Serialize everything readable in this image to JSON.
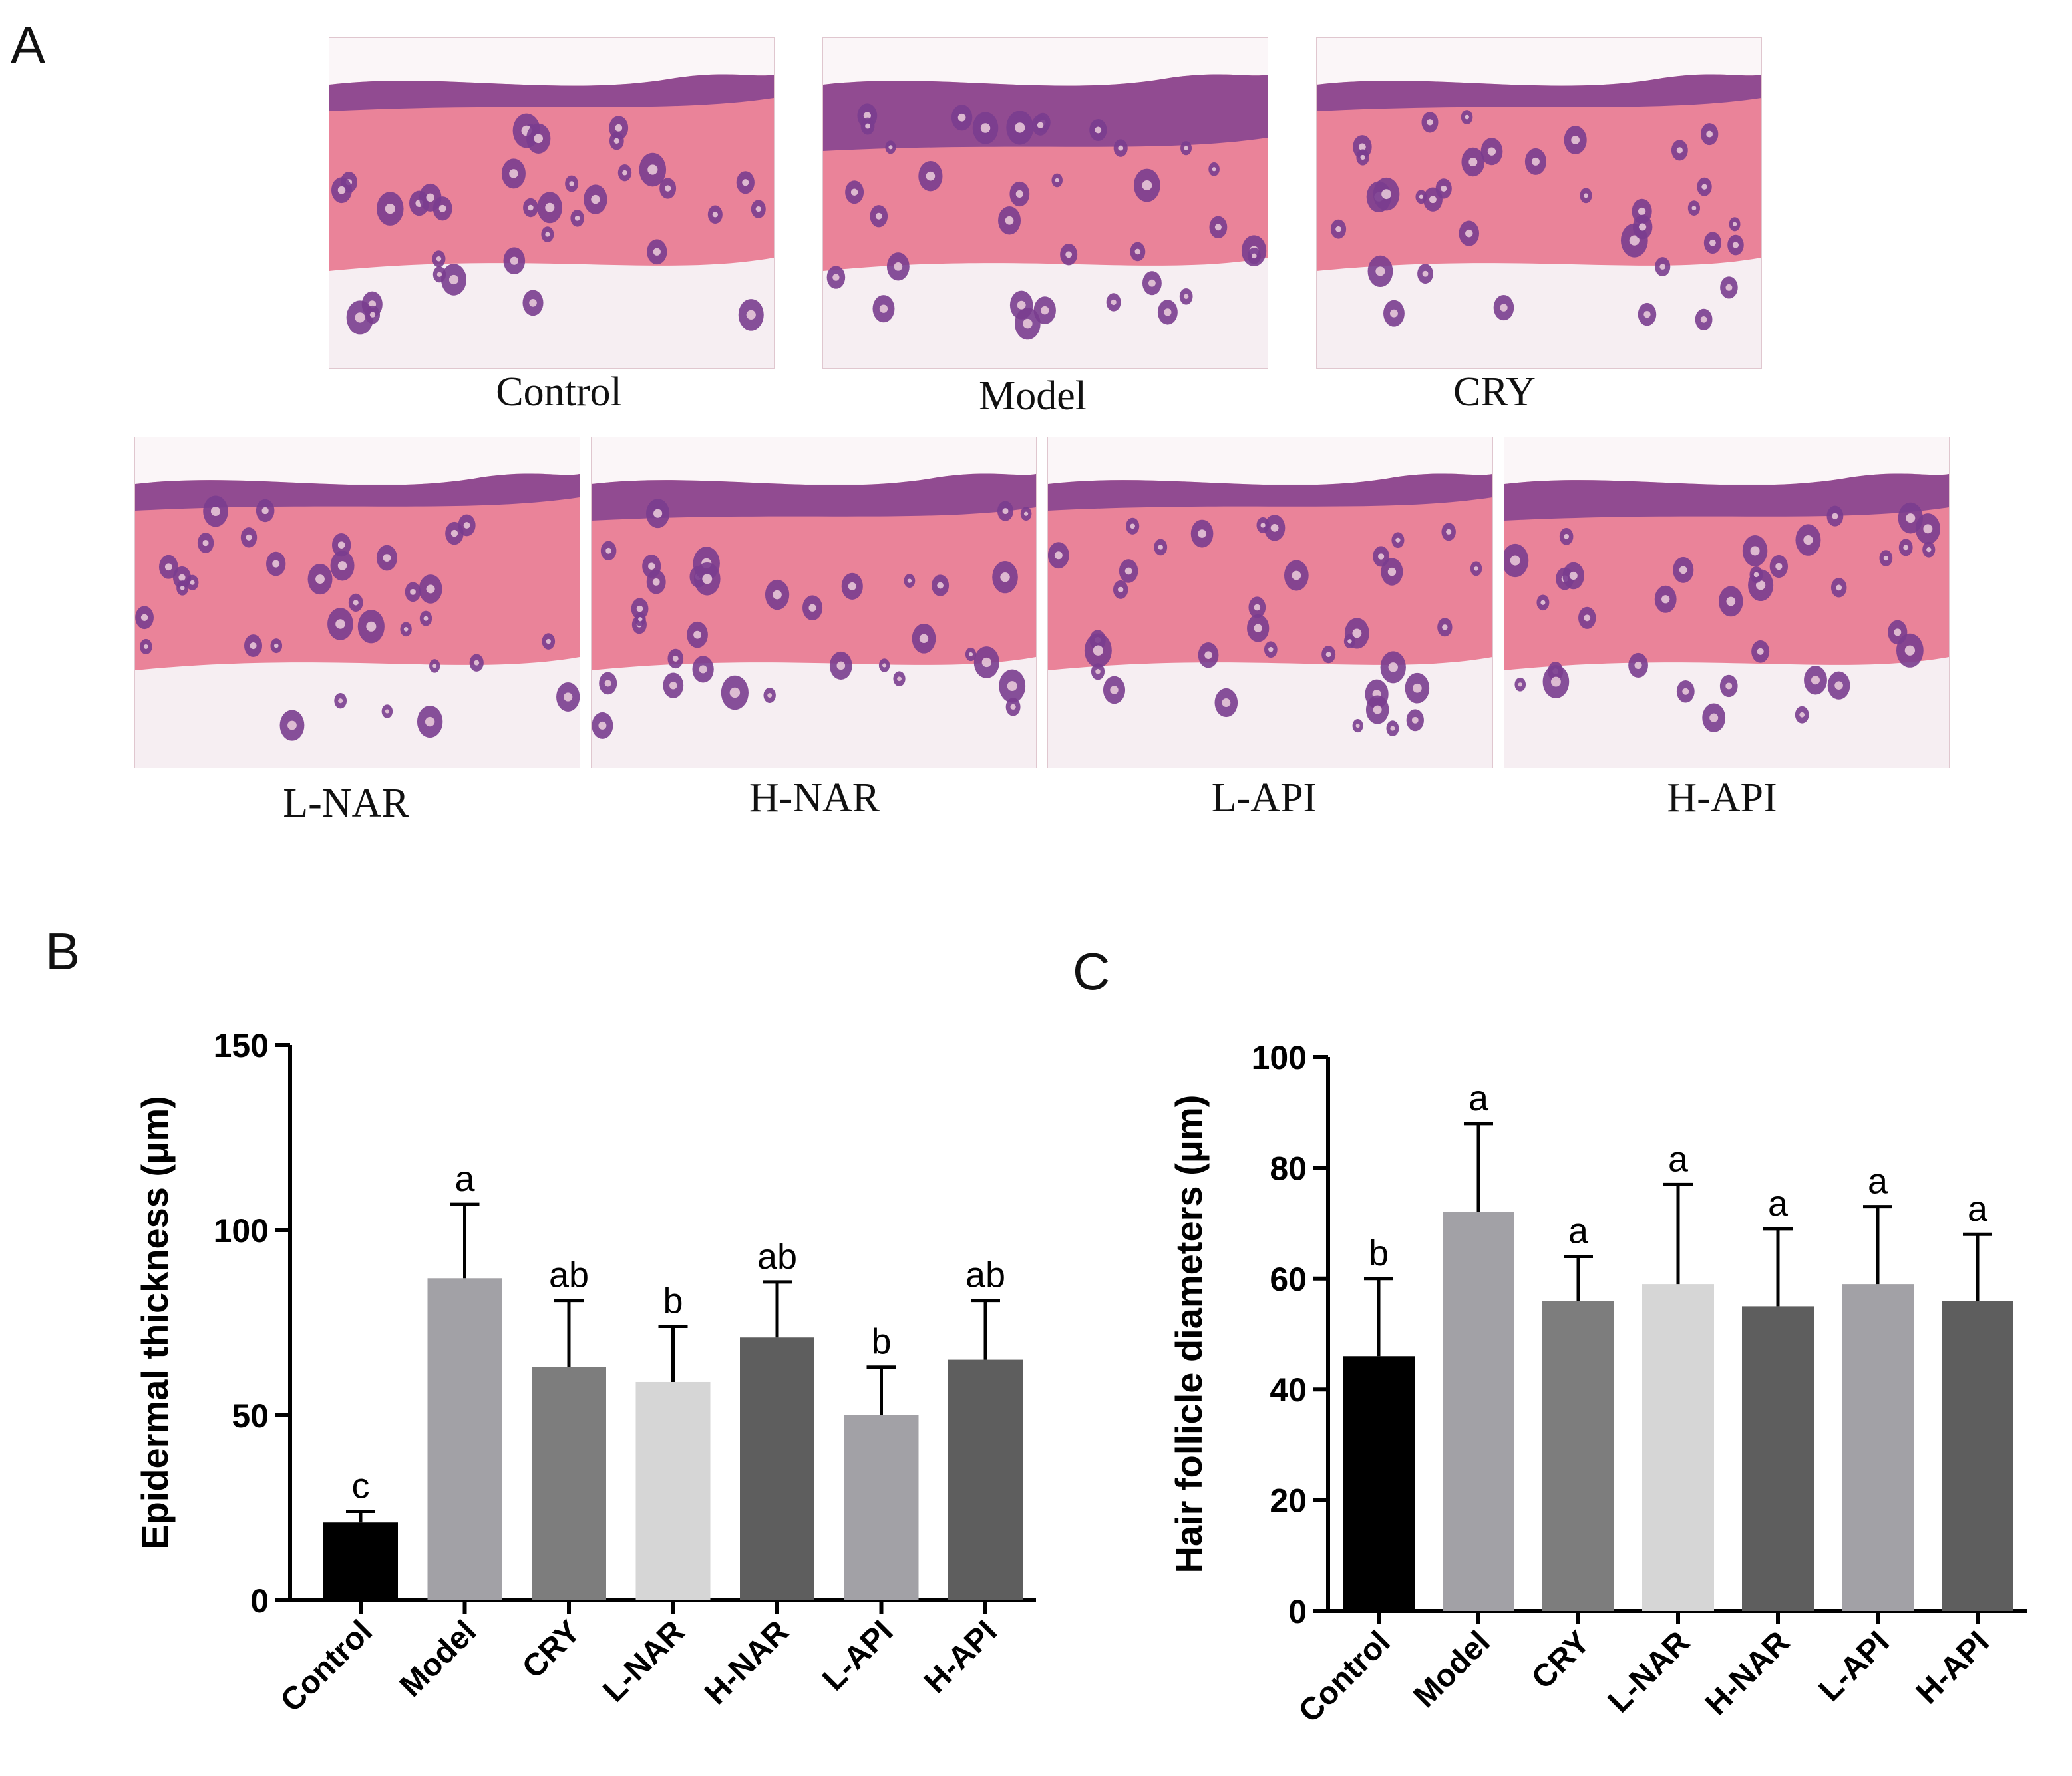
{
  "panels": {
    "a": "A",
    "b": "B",
    "c": "C"
  },
  "micrographs": [
    {
      "label": "Control",
      "epidermis": "thin"
    },
    {
      "label": "Model",
      "epidermis": "thick"
    },
    {
      "label": "CRY",
      "epidermis": "thin"
    },
    {
      "label": "L-NAR",
      "epidermis": "thin"
    },
    {
      "label": "H-NAR",
      "epidermis": "medium"
    },
    {
      "label": "L-API",
      "epidermis": "thin"
    },
    {
      "label": "H-API",
      "epidermis": "medium"
    }
  ],
  "colors": {
    "Control": "#000000",
    "Model": "#a2a1a6",
    "CRY": "#7d7d7d",
    "L-NAR": "#d6d6d6",
    "H-NAR": "#5e5e5e",
    "L-API": "#a2a1a6",
    "H-API": "#5e5e5e",
    "stain_pink": "#e8708a",
    "stain_purple": "#7a3d8f",
    "fat_white": "#f6eef2"
  },
  "chart_data": [
    {
      "type": "bar",
      "panel": "B",
      "categories": [
        "Control",
        "Model",
        "CRY",
        "L-NAR",
        "H-NAR",
        "L-API",
        "H-API"
      ],
      "values": [
        21,
        87,
        63,
        59,
        71,
        50,
        65
      ],
      "errors": [
        3,
        20,
        18,
        15,
        15,
        13,
        16
      ],
      "letters": [
        "c",
        "a",
        "ab",
        "b",
        "ab",
        "b",
        "ab"
      ],
      "ylabel": "Epidermal thickness (μm)",
      "ylim": [
        0,
        150
      ],
      "yticks": [
        "0",
        "50",
        "100",
        "150"
      ],
      "grid": false
    },
    {
      "type": "bar",
      "panel": "C",
      "categories": [
        "Control",
        "Model",
        "CRY",
        "L-NAR",
        "H-NAR",
        "L-API",
        "H-API"
      ],
      "values": [
        46,
        72,
        56,
        59,
        55,
        59,
        56
      ],
      "errors": [
        14,
        16,
        8,
        18,
        14,
        14,
        12
      ],
      "letters": [
        "b",
        "a",
        "a",
        "a",
        "a",
        "a",
        "a"
      ],
      "ylabel": "Hair follicle diameters (μm)",
      "ylim": [
        0,
        100
      ],
      "yticks": [
        "0",
        "20",
        "40",
        "60",
        "80",
        "100"
      ],
      "grid": false
    }
  ]
}
